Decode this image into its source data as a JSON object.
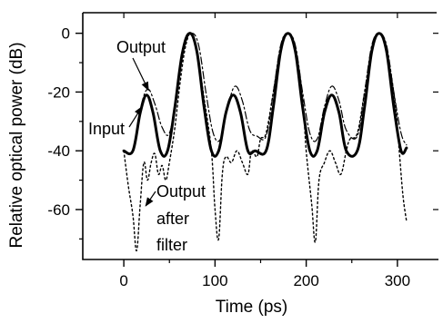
{
  "chart_data": {
    "type": "line",
    "title": "",
    "xlabel": "Time (ps)",
    "ylabel": "Relative optical power (dB)",
    "xlim": [
      -45,
      345
    ],
    "ylim": [
      -77,
      7
    ],
    "x_ticks": [
      0,
      100,
      200,
      300
    ],
    "x_tick_labels": [
      "0",
      "100",
      "200",
      "300"
    ],
    "y_ticks": [
      0,
      -20,
      -40,
      -60
    ],
    "y_tick_labels": [
      "0",
      "-20",
      "-40",
      "-60"
    ],
    "grid": false,
    "legend": "none (series identified by in-plot annotations)",
    "series": [
      {
        "name": "Input",
        "style": "solid",
        "x": [
          0,
          10,
          18,
          25,
          32,
          40,
          48,
          56,
          64,
          72,
          80,
          88,
          96,
          104,
          112,
          120,
          128,
          136,
          144,
          156,
          164,
          172,
          180,
          188,
          196,
          204,
          212,
          220,
          228,
          236,
          244,
          256,
          264,
          272,
          280,
          288,
          296,
          304,
          310
        ],
        "y": [
          -40,
          -40,
          -27,
          -21,
          -27,
          -40,
          -40,
          -25,
          -7,
          0,
          -6,
          -25,
          -40,
          -40,
          -27,
          -21,
          -27,
          -40,
          -40,
          -40,
          -25,
          -6,
          0,
          -6,
          -25,
          -40,
          -40,
          -27,
          -21,
          -27,
          -40,
          -40,
          -25,
          -6,
          0,
          -6,
          -25,
          -40,
          -39
        ]
      },
      {
        "name": "Output",
        "style": "dash-dot",
        "x": [
          0,
          10,
          18,
          26,
          34,
          42,
          50,
          58,
          66,
          74,
          82,
          90,
          98,
          106,
          114,
          122,
          130,
          138,
          146,
          156,
          164,
          172,
          180,
          188,
          196,
          204,
          212,
          220,
          228,
          236,
          244,
          256,
          264,
          272,
          280,
          288,
          296,
          304,
          310
        ],
        "y": [
          -40,
          -40,
          -26,
          -19,
          -24,
          -32,
          -34,
          -21,
          -5,
          0,
          -4,
          -20,
          -34,
          -36,
          -25,
          -18,
          -23,
          -33,
          -35,
          -35,
          -20,
          -4,
          0,
          -4,
          -20,
          -34,
          -36,
          -25,
          -18,
          -23,
          -33,
          -35,
          -20,
          -4,
          0,
          -4,
          -20,
          -34,
          -38
        ]
      },
      {
        "name": "Output after filter",
        "style": "dotted",
        "x": [
          0,
          5,
          10,
          14,
          18,
          22,
          26,
          30,
          34,
          38,
          42,
          46,
          50,
          56,
          62,
          68,
          74,
          80,
          88,
          96,
          100,
          104,
          108,
          112,
          118,
          124,
          130,
          136,
          140,
          146,
          150,
          156,
          164,
          172,
          180,
          188,
          196,
          200,
          206,
          210,
          214,
          220,
          226,
          232,
          238,
          244,
          248,
          256,
          264,
          272,
          280,
          288,
          298,
          302,
          306,
          310
        ],
        "y": [
          -40,
          -52,
          -62,
          -74,
          -58,
          -44,
          -50,
          -44,
          -41,
          -48,
          -45,
          -50,
          -44,
          -32,
          -16,
          -4,
          0,
          -6,
          -22,
          -40,
          -60,
          -70,
          -48,
          -42,
          -44,
          -40,
          -44,
          -48,
          -40,
          -42,
          -36,
          -34,
          -20,
          -5,
          0,
          -5,
          -22,
          -40,
          -58,
          -71,
          -50,
          -44,
          -40,
          -44,
          -48,
          -40,
          -36,
          -34,
          -20,
          -5,
          0,
          -5,
          -25,
          -40,
          -55,
          -64
        ]
      }
    ],
    "annotations": [
      {
        "text": "Output",
        "target_series": "Output",
        "target": [
          25,
          -20
        ]
      },
      {
        "text": "Input",
        "target_series": "Input",
        "target": [
          20,
          -25
        ]
      },
      {
        "text": "Output",
        "target_series": "Output after filter",
        "target": [
          20,
          -60
        ]
      },
      {
        "text": "after",
        "target_series": "Output after filter"
      },
      {
        "text": "filter",
        "target_series": "Output after filter"
      }
    ],
    "right_axis_tick_marks": [
      0,
      -20,
      -40,
      -60
    ]
  }
}
